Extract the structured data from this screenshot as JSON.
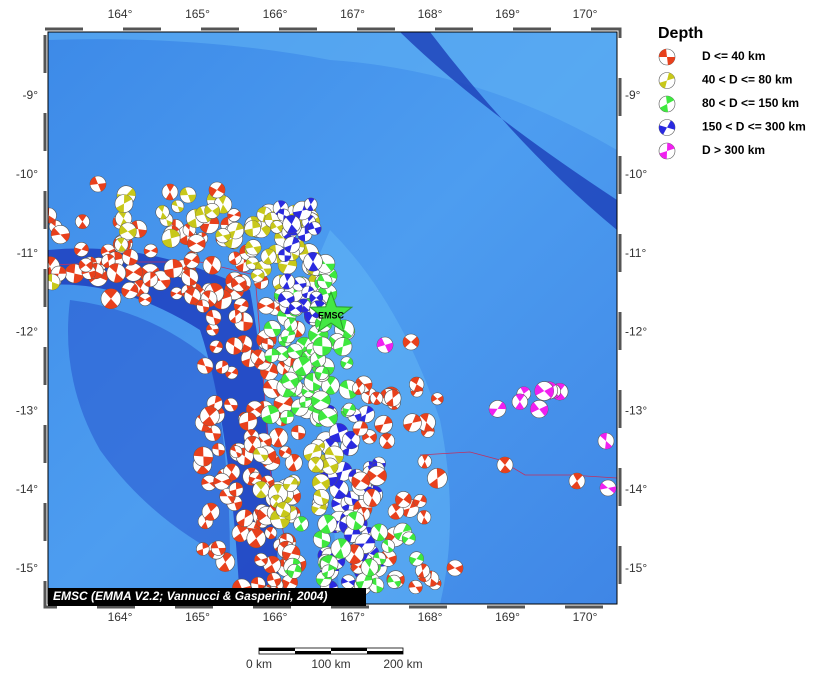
{
  "map": {
    "lon_labels": [
      "164°",
      "165°",
      "166°",
      "167°",
      "168°",
      "169°",
      "170°"
    ],
    "lat_labels": [
      "-9°",
      "-10°",
      "-11°",
      "-12°",
      "-13°",
      "-14°",
      "-15°"
    ],
    "legend": {
      "title": "Depth",
      "items": [
        "D <= 40 km",
        "40 < D <= 80 km",
        "80 < D <= 150 km",
        "150 < D <= 300 km",
        "D > 300 km"
      ]
    },
    "epicenter_label": "EMSC",
    "credit": "EMSC (EMMA V2.2; Vannucci & Gasperini, 2004)",
    "scale_labels": [
      "0 km",
      "100 km",
      "200 km"
    ]
  }
}
